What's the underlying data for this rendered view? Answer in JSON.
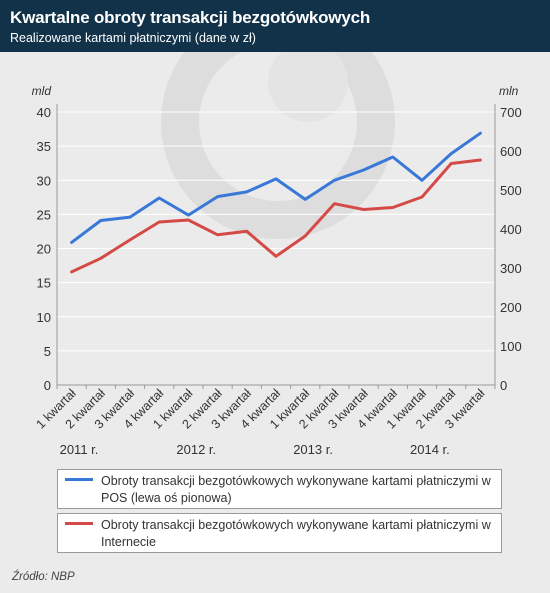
{
  "header": {
    "title": "Kwartalne obroty transakcji bezgotówkowych",
    "subtitle": "Realizowane kartami płatniczymi (dane w zł)"
  },
  "source": "Źródło: NBP",
  "colors": {
    "header_bg": "#12324a",
    "series_pos": "#3a78d8",
    "series_internet": "#d44a47",
    "grid": "#ffffff",
    "background": "#ebebeb"
  },
  "chart_data": {
    "type": "line",
    "title": "Kwartalne obroty transakcji bezgotówkowych",
    "subtitle": "Realizowane kartami płatniczymi (dane w zł)",
    "categories": [
      "1 kwartał",
      "2 kwartał",
      "3 kwartał",
      "4 kwartał",
      "1 kwartał",
      "2 kwartał",
      "3 kwartał",
      "4 kwartał",
      "1 kwartał",
      "2 kwartał",
      "3 kwartał",
      "4 kwartał",
      "1 kwartał",
      "2 kwartał",
      "3 kwartał"
    ],
    "year_labels": [
      {
        "label": "2011 r.",
        "category_index": 0
      },
      {
        "label": "2012 r.",
        "category_index": 4
      },
      {
        "label": "2013 r.",
        "category_index": 8
      },
      {
        "label": "2014 r.",
        "category_index": 12
      }
    ],
    "left_axis": {
      "unit": "mld",
      "ylim": [
        0,
        40
      ],
      "ticks": [
        0,
        5,
        10,
        15,
        20,
        25,
        30,
        35,
        40
      ]
    },
    "right_axis": {
      "unit": "mln",
      "ylim": [
        0,
        700
      ],
      "ticks": [
        0,
        100,
        200,
        300,
        400,
        500,
        600,
        700
      ]
    },
    "grid": true,
    "legend_position": "bottom",
    "series": [
      {
        "name": "Obroty transakcji bezgotówkowych wykonywane kartami płatniczymi w POS (lewa oś pionowa)",
        "axis": "left",
        "color": "#3a78d8",
        "values": [
          20.9,
          24.1,
          24.6,
          27.4,
          24.9,
          27.6,
          28.3,
          30.2,
          27.2,
          30.0,
          31.5,
          33.4,
          30.0,
          33.9,
          36.9
        ]
      },
      {
        "name": "Obroty transakcji bezgotówkowych wykonywane kartami płatniczymi w Internecie",
        "axis": "right",
        "color": "#d44a47",
        "values": [
          290,
          325,
          372,
          418,
          423,
          385,
          394,
          330,
          382,
          465,
          450,
          455,
          482,
          568,
          577
        ]
      }
    ]
  }
}
